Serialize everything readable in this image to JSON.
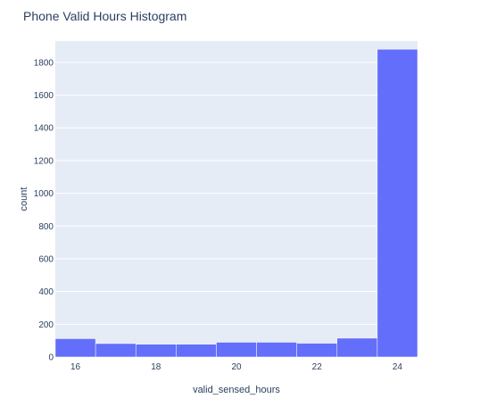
{
  "chart_data": {
    "type": "bar",
    "title": "Phone Valid Hours Histogram",
    "xlabel": "valid_sensed_hours",
    "ylabel": "count",
    "bins": [
      {
        "start": 15.5,
        "end": 16.5,
        "value": 112
      },
      {
        "start": 16.5,
        "end": 17.5,
        "value": 82
      },
      {
        "start": 17.5,
        "end": 18.5,
        "value": 78
      },
      {
        "start": 18.5,
        "end": 19.5,
        "value": 78
      },
      {
        "start": 19.5,
        "end": 20.5,
        "value": 90
      },
      {
        "start": 20.5,
        "end": 21.5,
        "value": 90
      },
      {
        "start": 21.5,
        "end": 22.5,
        "value": 84
      },
      {
        "start": 22.5,
        "end": 23.5,
        "value": 115
      },
      {
        "start": 23.5,
        "end": 24.5,
        "value": 1880
      }
    ],
    "xlim": [
      15.5,
      24.5
    ],
    "ylim": [
      0,
      1930
    ],
    "xticks": [
      16,
      18,
      20,
      22,
      24
    ],
    "yticks": [
      0,
      200,
      400,
      600,
      800,
      1000,
      1200,
      1400,
      1600,
      1800
    ],
    "grid": true,
    "colors": {
      "bar": "#636efa",
      "plot_bg": "#e5ecf6",
      "grid": "#ffffff",
      "text": "#2a3f5f"
    }
  }
}
